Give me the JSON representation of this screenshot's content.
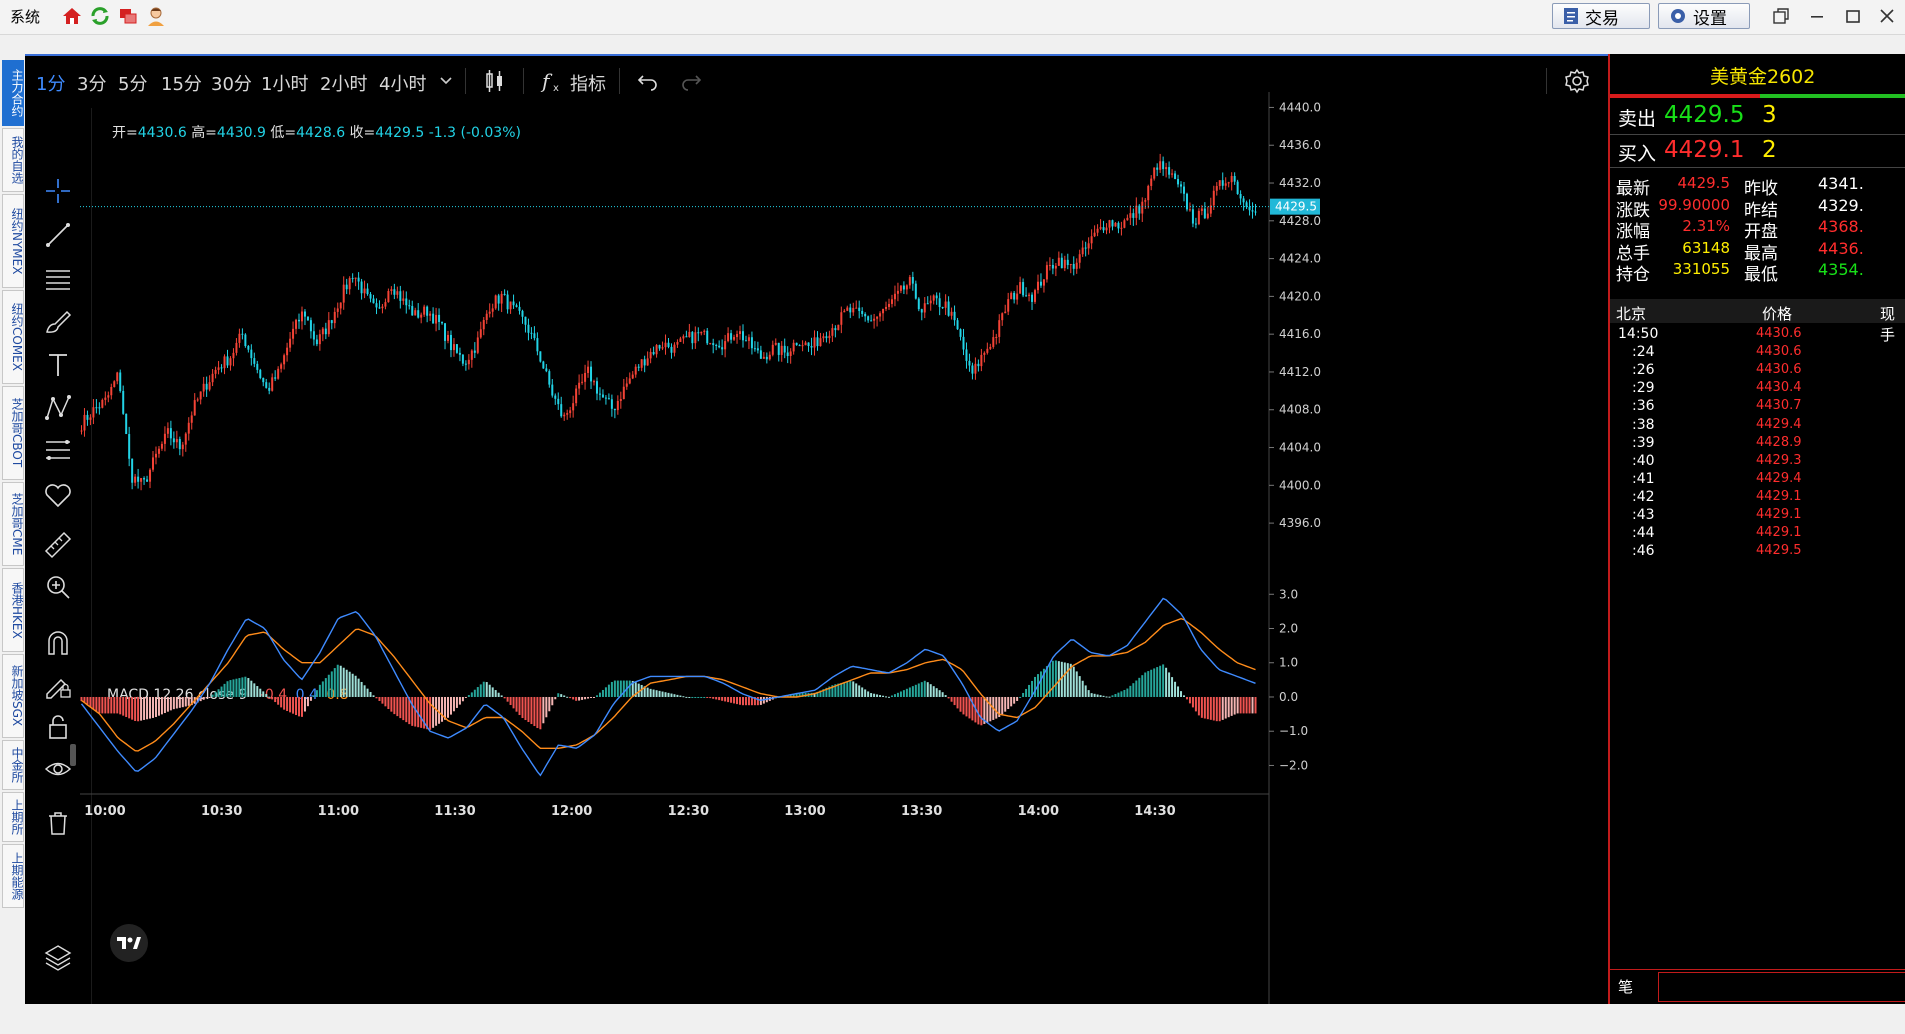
{
  "menu": {
    "system": "系统"
  },
  "toolbar": {
    "trade_label": "交易",
    "settings_label": "设置"
  },
  "left_tabs": [
    "主力合约",
    "我的自选",
    "纽约NYMEX",
    "纽约COMEX",
    "芝加哥CBOT",
    "芝加哥CME",
    "香港HKEX",
    "新加坡SGX",
    "中金所",
    "上期所",
    "上期能源"
  ],
  "timeframes": [
    "1分",
    "3分",
    "5分",
    "15分",
    "30分",
    "1小时",
    "2小时",
    "4小时"
  ],
  "indicator_label": "指标",
  "ohlc": {
    "open_label": "开=",
    "open": "4430.6",
    "high_label": "高=",
    "high": "4430.9",
    "low_label": "低=",
    "low": "4428.6",
    "close_label": "收=",
    "close": "4429.5",
    "change": "-1.3 (-0.03%)"
  },
  "macd_legend": {
    "name": "MACD 12 26 close 9",
    "hist": "-0.4",
    "macd": "0.4",
    "signal": "0.8"
  },
  "price_axis": [
    "4440.0",
    "4436.0",
    "4432.0",
    "4428.0",
    "4424.0",
    "4420.0",
    "4416.0",
    "4412.0",
    "4408.0",
    "4404.0",
    "4400.0",
    "4396.0"
  ],
  "current_price_tag": "4429.5",
  "macd_axis": [
    "3.0",
    "2.0",
    "1.0",
    "0.0",
    "−1.0",
    "−2.0"
  ],
  "time_axis": [
    "10:00",
    "10:30",
    "11:00",
    "11:30",
    "12:00",
    "12:30",
    "13:00",
    "13:30",
    "14:00",
    "14:30"
  ],
  "colors": {
    "up": "#f44336",
    "down": "#22d3e6",
    "macd_line": "#3f8bff",
    "signal_line": "#ff8c1a",
    "hist_up": "#26a69a",
    "hist_down": "#ef5350",
    "quote_red": "#ff2d2d",
    "quote_green": "#18e018",
    "quote_yellow": "#ffee00"
  },
  "quote": {
    "title": "美黄金2602",
    "sell_label": "卖出",
    "sell_price": "4429.5",
    "sell_vol": "3",
    "buy_label": "买入",
    "buy_price": "4429.1",
    "buy_vol": "2",
    "stats": [
      {
        "l1": "最新",
        "v1": "4429.5",
        "l2": "昨收",
        "v2": "4341."
      },
      {
        "l1": "涨跌",
        "v1": "99.90000",
        "l2": "昨结",
        "v2": "4329."
      },
      {
        "l1": "涨幅",
        "v1": "2.31%",
        "l2": "开盘",
        "v2": "4368."
      },
      {
        "l1": "总手",
        "v1": "63148",
        "l2": "最高",
        "v2": "4436."
      },
      {
        "l1": "持仓",
        "v1": "331055",
        "l2": "最低",
        "v2": "4354."
      }
    ],
    "tick_headers": [
      "北京",
      "价格",
      "现手"
    ],
    "ticks": [
      {
        "time": "14:50",
        "price": "4430.6"
      },
      {
        "time": ":24",
        "price": "4430.6"
      },
      {
        "time": ":26",
        "price": "4430.6"
      },
      {
        "time": ":29",
        "price": "4430.4"
      },
      {
        "time": ":36",
        "price": "4430.7"
      },
      {
        "time": ":38",
        "price": "4429.4"
      },
      {
        "time": ":39",
        "price": "4428.9"
      },
      {
        "time": ":40",
        "price": "4429.3"
      },
      {
        "time": ":41",
        "price": "4429.4"
      },
      {
        "time": ":42",
        "price": "4429.1"
      },
      {
        "time": ":43",
        "price": "4429.1"
      },
      {
        "time": ":44",
        "price": "4429.1"
      },
      {
        "time": ":46",
        "price": "4429.5"
      }
    ],
    "bottom_label": "笔"
  },
  "chart_data": {
    "type": "candlestick",
    "ylim": [
      4394.0,
      4441.0
    ],
    "macd_ylim": [
      -2.6,
      3.3
    ],
    "x": [
      "10:00",
      "10:30",
      "11:00",
      "11:30",
      "12:00",
      "12:30",
      "13:00",
      "13:30",
      "14:00",
      "14:30"
    ],
    "price_path": [
      4406.5,
      4408.0,
      4409.0,
      4411.8,
      4401.0,
      4400.0,
      4403.0,
      4405.5,
      4404.0,
      4408.0,
      4410.5,
      4412.5,
      4413.5,
      4416.0,
      4413.0,
      4410.0,
      4412.0,
      4416.0,
      4418.5,
      4415.0,
      4417.0,
      4420.0,
      4422.5,
      4420.0,
      4418.0,
      4421.5,
      4419.5,
      4418.0,
      4418.5,
      4417.0,
      4414.5,
      4413.0,
      4415.0,
      4419.0,
      4420.0,
      4418.5,
      4417.0,
      4414.0,
      4410.0,
      4407.0,
      4409.5,
      4412.0,
      4409.5,
      4408.0,
      4410.5,
      4412.5,
      4414.0,
      4415.0,
      4414.5,
      4415.5,
      4416.0,
      4415.5,
      4415.0,
      4416.5,
      4415.0,
      4413.5,
      4414.5,
      4414.0,
      4415.5,
      4414.5,
      4416.0,
      4417.0,
      4418.5,
      4418.0,
      4417.5,
      4418.5,
      4420.0,
      4421.5,
      4418.5,
      4419.5,
      4419.0,
      4416.0,
      4411.5,
      4414.0,
      4416.0,
      4419.5,
      4421.0,
      4420.0,
      4422.5,
      4424.0,
      4423.0,
      4424.5,
      4426.5,
      4428.0,
      4427.5,
      4428.5,
      4430.0,
      4434.0,
      4433.0,
      4431.0,
      4428.0,
      4429.0,
      4431.5,
      4433.0,
      4430.0,
      4429.5
    ],
    "macd_path": [
      -0.2,
      -0.9,
      -1.6,
      -2.2,
      -1.8,
      -1.1,
      -0.4,
      0.4,
      1.4,
      2.3,
      2.0,
      1.1,
      0.5,
      1.3,
      2.3,
      2.5,
      1.8,
      0.8,
      -0.2,
      -1.0,
      -1.2,
      -0.9,
      -0.2,
      -0.6,
      -1.5,
      -2.3,
      -1.4,
      -1.5,
      -1.1,
      -0.2,
      0.4,
      0.6,
      0.6,
      0.6,
      0.6,
      0.4,
      0.1,
      -0.1,
      0.0,
      0.1,
      0.2,
      0.6,
      0.9,
      0.8,
      0.7,
      1.0,
      1.4,
      1.2,
      0.4,
      -0.6,
      -1.0,
      -0.7,
      0.2,
      1.2,
      1.7,
      1.3,
      1.2,
      1.5,
      2.2,
      2.9,
      2.4,
      1.4,
      0.8,
      0.6,
      0.4
    ],
    "signal_path": [
      -0.1,
      -0.5,
      -1.2,
      -1.6,
      -1.3,
      -0.8,
      -0.2,
      0.4,
      1.0,
      1.8,
      1.9,
      1.4,
      1.0,
      1.0,
      1.5,
      2.0,
      1.8,
      1.2,
      0.5,
      -0.2,
      -0.7,
      -0.9,
      -0.6,
      -0.6,
      -1.0,
      -1.5,
      -1.5,
      -1.4,
      -1.1,
      -0.6,
      0.0,
      0.4,
      0.5,
      0.6,
      0.6,
      0.5,
      0.3,
      0.1,
      0.0,
      0.0,
      0.1,
      0.3,
      0.5,
      0.7,
      0.7,
      0.8,
      1.0,
      1.1,
      0.8,
      0.1,
      -0.5,
      -0.6,
      -0.3,
      0.3,
      0.9,
      1.2,
      1.2,
      1.3,
      1.6,
      2.1,
      2.3,
      1.9,
      1.4,
      1.0,
      0.8
    ]
  }
}
